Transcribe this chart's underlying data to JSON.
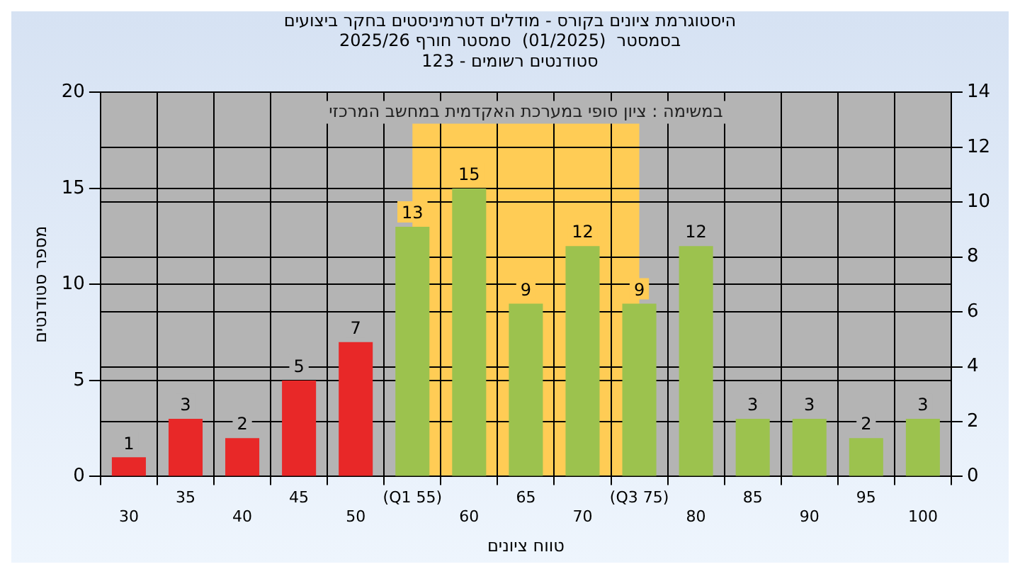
{
  "chart_data": {
    "type": "bar",
    "title": [
      "היסטוגרמת ציונים בקורס - מודלים דטרמיניסטים בחקר ביצועים",
      "בסמסטר  (01/2025)  סמסטר חורף 2025/26",
      "סטודנטים רשומים - 123"
    ],
    "xlabel": "טווח ציונים",
    "ylabel": "מספר סטודנטים",
    "categories": [
      "30",
      "35",
      "40",
      "45",
      "50",
      "(Q1 55)",
      "60",
      "65",
      "70",
      "(Q3 75)",
      "80",
      "85",
      "90",
      "95",
      "100"
    ],
    "values": [
      1,
      3,
      2,
      5,
      7,
      13,
      15,
      9,
      12,
      9,
      12,
      3,
      3,
      2,
      3
    ],
    "colors": [
      "#e82828",
      "#e82828",
      "#e82828",
      "#e82828",
      "#e82828",
      "#9cc24e",
      "#9cc24e",
      "#9cc24e",
      "#9cc24e",
      "#9cc24e",
      "#9cc24e",
      "#9cc24e",
      "#9cc24e",
      "#9cc24e",
      "#9cc24e"
    ],
    "ylim": [
      0,
      20
    ],
    "yticks": [
      0,
      5,
      10,
      15,
      20
    ],
    "y2lim": [
      0,
      14
    ],
    "y2ticks": [
      0,
      2,
      4,
      6,
      8,
      10,
      12,
      14
    ],
    "bands": [
      {
        "axis": "x",
        "from": "(Q1 55)",
        "to": "(Q3 75)",
        "color": "#ffcc55"
      }
    ],
    "annotations": [
      "במשימה : ציון סופי במערכת האקדמית במחשב המרכזי"
    ],
    "data_labels": true,
    "grid": true,
    "legend": false
  }
}
